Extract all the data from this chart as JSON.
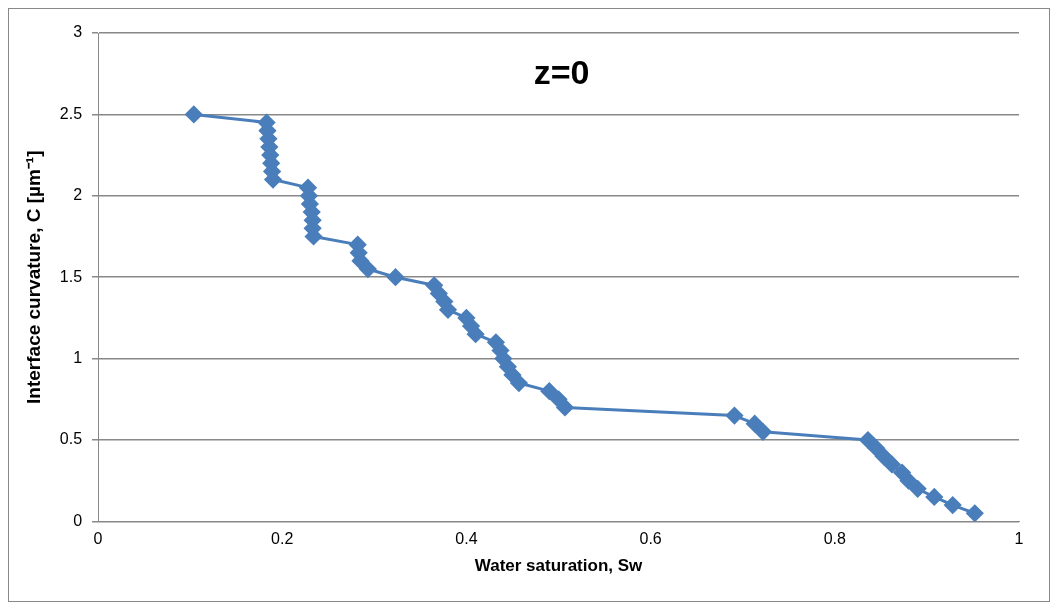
{
  "chart_data": {
    "type": "line",
    "title": "z=0",
    "xlabel": "Water saturation, Sw",
    "ylabel": "Interface curvature, C [µm⁻¹]",
    "xlim": [
      0,
      1
    ],
    "xticks": [
      0,
      0.2,
      0.4,
      0.6,
      0.8,
      1
    ],
    "ylim": [
      0,
      3
    ],
    "yticks": [
      0,
      0.5,
      1,
      1.5,
      2,
      2.5,
      3
    ],
    "grid": "y",
    "marker": "diamond",
    "line_style": "solid",
    "series": [
      {
        "color": "#4a7ebb",
        "x": [
          0.104,
          0.183,
          0.184,
          0.185,
          0.186,
          0.187,
          0.188,
          0.189,
          0.19,
          0.228,
          0.229,
          0.23,
          0.232,
          0.233,
          0.233,
          0.234,
          0.282,
          0.283,
          0.285,
          0.293,
          0.323,
          0.365,
          0.37,
          0.376,
          0.38,
          0.4,
          0.405,
          0.41,
          0.432,
          0.437,
          0.44,
          0.445,
          0.45,
          0.457,
          0.49,
          0.5,
          0.507,
          0.691,
          0.713,
          0.722,
          0.836,
          0.845,
          0.853,
          0.862,
          0.873,
          0.88,
          0.89,
          0.908,
          0.928,
          0.952
        ],
        "values": [
          2.5,
          2.45,
          2.4,
          2.35,
          2.3,
          2.25,
          2.2,
          2.15,
          2.1,
          2.05,
          2.0,
          1.95,
          1.9,
          1.85,
          1.8,
          1.75,
          1.7,
          1.65,
          1.6,
          1.55,
          1.5,
          1.45,
          1.4,
          1.35,
          1.3,
          1.25,
          1.2,
          1.15,
          1.1,
          1.05,
          1.0,
          0.95,
          0.9,
          0.85,
          0.8,
          0.75,
          0.7,
          0.65,
          0.6,
          0.55,
          0.5,
          0.45,
          0.4,
          0.35,
          0.3,
          0.25,
          0.2,
          0.15,
          0.1,
          0.05
        ]
      }
    ]
  }
}
